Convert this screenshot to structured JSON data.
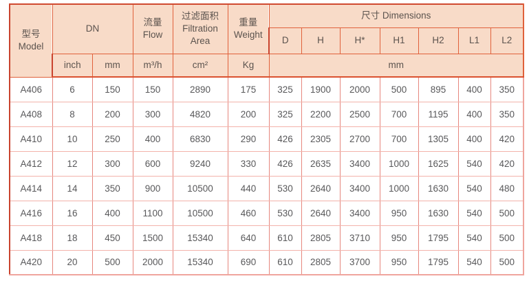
{
  "header": {
    "model": "型号\nModel",
    "dn": "DN",
    "flow": "流量\nFlow",
    "filtration_area": "过滤面积\nFiltration\nArea",
    "weight": "重量\nWeight",
    "dimensions": "尺寸 Dimensions",
    "dim_cols": [
      "D",
      "H",
      "H*",
      "H1",
      "H2",
      "L1",
      "L2"
    ],
    "units": {
      "inch": "inch",
      "mm": "mm",
      "flow": "m³/h",
      "area": "cm²",
      "weight": "Kg",
      "dims": "mm"
    }
  },
  "rows": [
    {
      "model": "A406",
      "inch": "6",
      "mm": "150",
      "flow": "150",
      "area": "2890",
      "weight": "175",
      "dims": [
        "325",
        "1900",
        "2000",
        "500",
        "895",
        "400",
        "350"
      ]
    },
    {
      "model": "A408",
      "inch": "8",
      "mm": "200",
      "flow": "300",
      "area": "4820",
      "weight": "200",
      "dims": [
        "325",
        "2200",
        "2500",
        "700",
        "1195",
        "400",
        "350"
      ]
    },
    {
      "model": "A410",
      "inch": "10",
      "mm": "250",
      "flow": "400",
      "area": "6830",
      "weight": "290",
      "dims": [
        "426",
        "2305",
        "2700",
        "700",
        "1305",
        "400",
        "420"
      ]
    },
    {
      "model": "A412",
      "inch": "12",
      "mm": "300",
      "flow": "600",
      "area": "9240",
      "weight": "330",
      "dims": [
        "426",
        "2635",
        "3400",
        "1000",
        "1625",
        "540",
        "420"
      ]
    },
    {
      "model": "A414",
      "inch": "14",
      "mm": "350",
      "flow": "900",
      "area": "10500",
      "weight": "440",
      "dims": [
        "530",
        "2640",
        "3400",
        "1000",
        "1630",
        "540",
        "480"
      ]
    },
    {
      "model": "A416",
      "inch": "16",
      "mm": "400",
      "flow": "1100",
      "area": "10500",
      "weight": "460",
      "dims": [
        "530",
        "2640",
        "3400",
        "950",
        "1630",
        "540",
        "500"
      ]
    },
    {
      "model": "A418",
      "inch": "18",
      "mm": "450",
      "flow": "1500",
      "area": "15340",
      "weight": "640",
      "dims": [
        "610",
        "2805",
        "3710",
        "950",
        "1795",
        "540",
        "500"
      ]
    },
    {
      "model": "A420",
      "inch": "20",
      "mm": "500",
      "flow": "2000",
      "area": "15340",
      "weight": "690",
      "dims": [
        "610",
        "2805",
        "3700",
        "950",
        "1795",
        "540",
        "500"
      ]
    }
  ],
  "colors": {
    "header_bg": "#f8dbc8",
    "header_grid": "#e0603a",
    "outer_strong": "#c9432e",
    "body_grid_vertical": "#e6867d",
    "body_grid_horizontal": "#f3b2aa",
    "text": "#58585a"
  }
}
